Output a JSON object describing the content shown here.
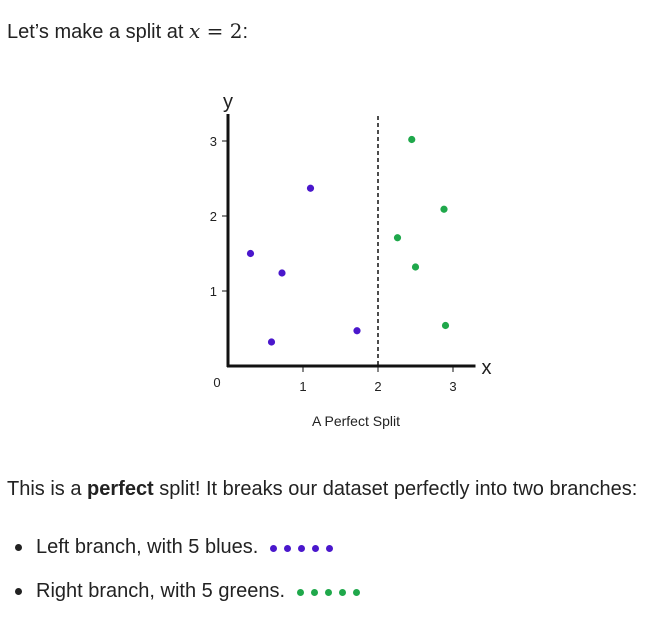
{
  "intro": {
    "text": "Let’s make a split at ",
    "math_var": "x",
    "math_op": " = ",
    "math_num": "2",
    "suffix": ":"
  },
  "colors": {
    "blue": "#4a17cc",
    "green": "#1fa84b",
    "axis": "#111111"
  },
  "chart_data": {
    "type": "scatter",
    "xlabel": "x",
    "ylabel": "y",
    "origin_label": "0",
    "xlim": [
      0,
      3.3
    ],
    "ylim": [
      0,
      3.2
    ],
    "xticks": [
      1,
      2,
      3
    ],
    "yticks": [
      1,
      2,
      3
    ],
    "split_line_x": 2,
    "caption": "A Perfect Split",
    "series": [
      {
        "color": "blue",
        "points": [
          {
            "x": 0.3,
            "y": 1.5
          },
          {
            "x": 0.58,
            "y": 0.32
          },
          {
            "x": 0.72,
            "y": 1.24
          },
          {
            "x": 1.1,
            "y": 2.37
          },
          {
            "x": 1.72,
            "y": 0.47
          }
        ]
      },
      {
        "color": "green",
        "points": [
          {
            "x": 2.26,
            "y": 1.71
          },
          {
            "x": 2.45,
            "y": 3.02
          },
          {
            "x": 2.5,
            "y": 1.32
          },
          {
            "x": 2.88,
            "y": 2.09
          },
          {
            "x": 2.9,
            "y": 0.54
          }
        ]
      }
    ]
  },
  "summary": {
    "before": "This is a ",
    "bold": "perfect",
    "after": " split! It breaks our dataset perfectly into two branches:"
  },
  "branches": [
    {
      "text": "Left branch, with 5 blues.",
      "color": "blue",
      "count": 5
    },
    {
      "text": "Right branch, with 5 greens.",
      "color": "green",
      "count": 5
    }
  ]
}
